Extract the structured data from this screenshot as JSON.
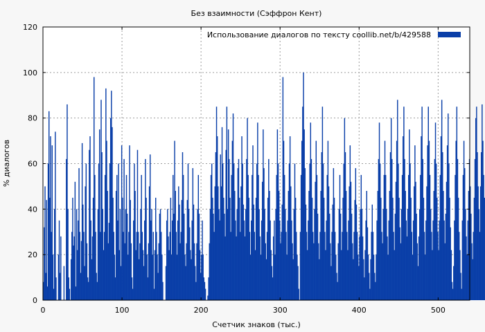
{
  "chart_data": {
    "type": "bar",
    "title": "Без взаимности (Сэффрон Кент)",
    "xlabel": "Счетчик знаков (тыс.)",
    "ylabel": "% диалогов",
    "xlim": [
      0,
      540
    ],
    "ylim": [
      0,
      120
    ],
    "xticks": [
      0,
      100,
      200,
      300,
      400,
      500
    ],
    "yticks": [
      0,
      20,
      40,
      60,
      80,
      100,
      120
    ],
    "grid": true,
    "legend_position": "top-right",
    "series": [
      {
        "name": "Использование диалогов по тексту  coollib.net/b/429588",
        "color": "#0a3fa8",
        "start_x": 0,
        "step_x": 1,
        "values": [
          8,
          32,
          50,
          12,
          44,
          6,
          60,
          83,
          45,
          72,
          30,
          68,
          20,
          5,
          40,
          74,
          10,
          0,
          0,
          20,
          35,
          12,
          28,
          0,
          0,
          0,
          15,
          0,
          0,
          62,
          86,
          40,
          10,
          5,
          0,
          18,
          30,
          45,
          24,
          28,
          52,
          6,
          40,
          22,
          35,
          58,
          30,
          12,
          26,
          69,
          42,
          30,
          15,
          50,
          60,
          25,
          10,
          8,
          66,
          72,
          35,
          18,
          28,
          45,
          98,
          55,
          30,
          12,
          8,
          40,
          60,
          75,
          30,
          88,
          65,
          40,
          22,
          30,
          55,
          93,
          70,
          48,
          25,
          34,
          60,
          80,
          92,
          76,
          45,
          30,
          20,
          10,
          48,
          55,
          35,
          60,
          22,
          40,
          15,
          68,
          45,
          30,
          62,
          25,
          40,
          55,
          38,
          20,
          30,
          68,
          44,
          25,
          10,
          5,
          35,
          60,
          48,
          22,
          30,
          66,
          30,
          18,
          25,
          40,
          55,
          30,
          22,
          15,
          35,
          62,
          45,
          20,
          10,
          25,
          50,
          64,
          35,
          40,
          20,
          30,
          5,
          22,
          45,
          30,
          20,
          12,
          25,
          38,
          40,
          30,
          20,
          8,
          0,
          0,
          0,
          15,
          35,
          40,
          28,
          22,
          30,
          45,
          20,
          35,
          55,
          38,
          70,
          48,
          30,
          20,
          35,
          50,
          42,
          25,
          30,
          44,
          65,
          55,
          38,
          20,
          15,
          25,
          44,
          60,
          40,
          32,
          22,
          18,
          35,
          58,
          42,
          25,
          15,
          8,
          25,
          40,
          55,
          38,
          22,
          12,
          20,
          35,
          20,
          10,
          8,
          5,
          0,
          0,
          2,
          10,
          25,
          40,
          55,
          60,
          45,
          38,
          30,
          50,
          65,
          85,
          72,
          50,
          40,
          35,
          64,
          50,
          76,
          60,
          45,
          38,
          28,
          66,
          85,
          40,
          75,
          62,
          45,
          30,
          55,
          70,
          82,
          60,
          48,
          35,
          28,
          40,
          58,
          62,
          45,
          30,
          50,
          72,
          60,
          42,
          35,
          28,
          40,
          62,
          80,
          55,
          45,
          30,
          20,
          35,
          55,
          68,
          42,
          30,
          22,
          45,
          60,
          78,
          55,
          40,
          28,
          20,
          35,
          52,
          75,
          58,
          40,
          25,
          18,
          30,
          45,
          62,
          48,
          35,
          22,
          15,
          10,
          28,
          35,
          20,
          40,
          55,
          75,
          60,
          48,
          35,
          25,
          30,
          42,
          98,
          70,
          55,
          40,
          30,
          20,
          35,
          48,
          60,
          72,
          50,
          35,
          25,
          18,
          40,
          60,
          45,
          30,
          20,
          15,
          5,
          0,
          30,
          55,
          70,
          85,
          100,
          75,
          58,
          42,
          30,
          22,
          35,
          48,
          60,
          78,
          62,
          45,
          30,
          25,
          40,
          52,
          70,
          55,
          38,
          25,
          18,
          30,
          48,
          65,
          85,
          60,
          45,
          30,
          22,
          35,
          55,
          70,
          50,
          38,
          25,
          15,
          30,
          42,
          58,
          45,
          30,
          20,
          12,
          8,
          25,
          40,
          55,
          38,
          22,
          30,
          45,
          60,
          80,
          65,
          48,
          30,
          22,
          35,
          50,
          68,
          52,
          38,
          25,
          18,
          30,
          44,
          58,
          42,
          30,
          20,
          15,
          28,
          40,
          55,
          40,
          28,
          18,
          10,
          22,
          35,
          48,
          32,
          20,
          12,
          5,
          18,
          30,
          42,
          30,
          20,
          12,
          8,
          20,
          35,
          48,
          62,
          78,
          60,
          45,
          30,
          25,
          40,
          55,
          70,
          55,
          40,
          28,
          20,
          35,
          48,
          65,
          80,
          62,
          45,
          30,
          22,
          38,
          52,
          70,
          88,
          60,
          45,
          32,
          25,
          40,
          55,
          72,
          85,
          62,
          48,
          35,
          28,
          40,
          55,
          75,
          60,
          45,
          30,
          20,
          35,
          50,
          68,
          52,
          38,
          25,
          15,
          28,
          40,
          55,
          72,
          85,
          62,
          45,
          30,
          20,
          35,
          50,
          68,
          85,
          70,
          55,
          40,
          30,
          22,
          35,
          48,
          62,
          78,
          60,
          45,
          30,
          22,
          35,
          55,
          72,
          88,
          65,
          48,
          35,
          25,
          38,
          52,
          68,
          82,
          60,
          45,
          32,
          22,
          8,
          5,
          15,
          35,
          55,
          70,
          85,
          62,
          45,
          30,
          22,
          12,
          5,
          35,
          55,
          70,
          58,
          40,
          28,
          20,
          35,
          48,
          62,
          50,
          38,
          25,
          18,
          30,
          45,
          62,
          80,
          85,
          65,
          50,
          40,
          30,
          50,
          65,
          86,
          70,
          55,
          45
        ]
      }
    ]
  }
}
